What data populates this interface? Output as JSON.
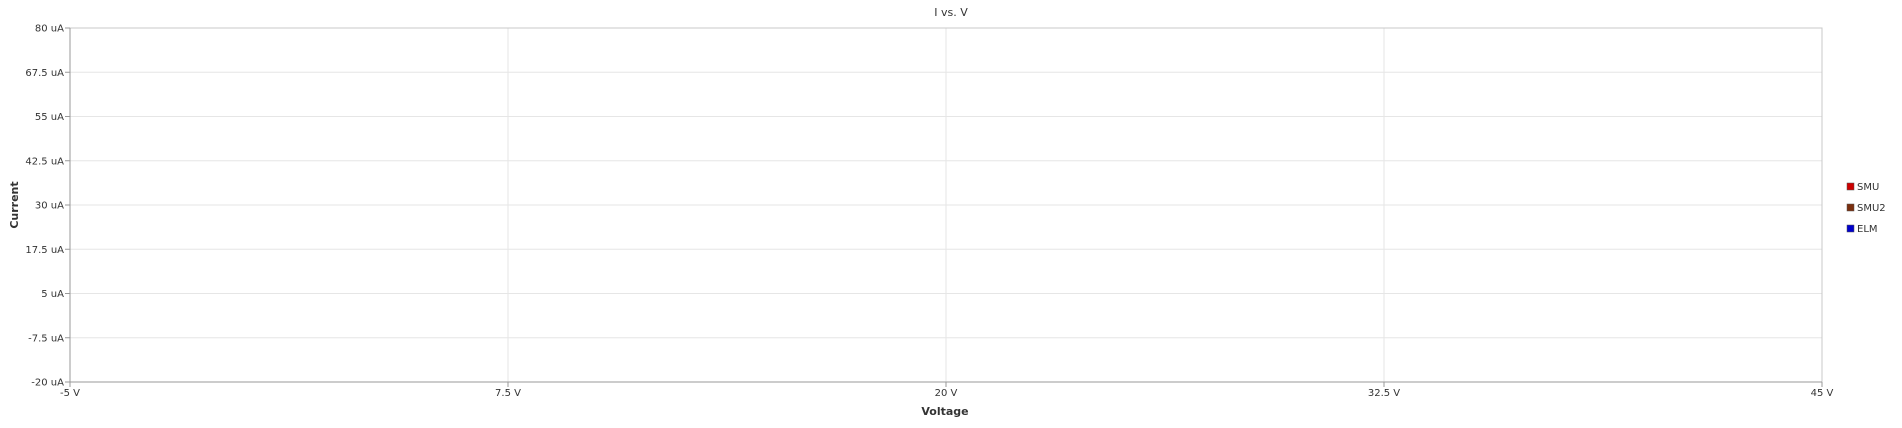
{
  "chart_data": {
    "type": "line",
    "title": "I vs. V",
    "xlabel": "Voltage",
    "ylabel": "Current",
    "xlim": [
      -5,
      45
    ],
    "ylim": [
      -20,
      80
    ],
    "x_ticks": [
      -5,
      7.5,
      20,
      32.5,
      45
    ],
    "x_tick_labels": [
      "-5 V",
      "7.5 V",
      "20 V",
      "32.5 V",
      "45 V"
    ],
    "y_ticks": [
      80,
      67.5,
      55,
      42.5,
      30,
      17.5,
      5,
      -7.5,
      -20
    ],
    "y_tick_labels": [
      "80 uA",
      "67.5 uA",
      "55 uA",
      "42.5 uA",
      "30 uA",
      "17.5 uA",
      "5 uA",
      "-7.5 uA",
      "-20 uA"
    ],
    "grid": true,
    "legend_position": "right",
    "series": [
      {
        "name": "SMU",
        "color": "#cc0000",
        "x": [],
        "y": []
      },
      {
        "name": "SMU2",
        "color": "#7a2e0e",
        "x": [],
        "y": []
      },
      {
        "name": "ELM",
        "color": "#0000cc",
        "x": [],
        "y": []
      }
    ]
  }
}
